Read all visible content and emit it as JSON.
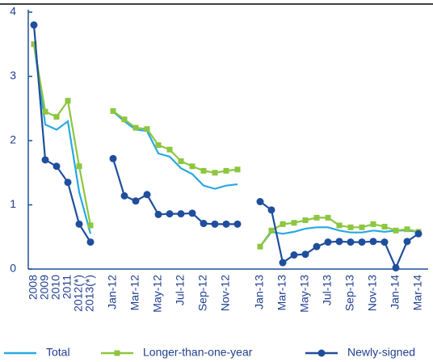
{
  "chart_data": {
    "type": "line",
    "categories": [
      "2008",
      "2009",
      "2010",
      "2011",
      "2012(*)",
      "2013(*)",
      null,
      "Jan-12",
      null,
      "Mar-12",
      null,
      "May-12",
      null,
      "Jul-12",
      null,
      "Sep-12",
      null,
      "Nov-12",
      null,
      null,
      "Jan-13",
      null,
      "Mar-13",
      null,
      "May-13",
      null,
      "Jul-13",
      null,
      "Sep-13",
      null,
      "Nov-13",
      null,
      "Jan-14",
      null,
      "Mar-14"
    ],
    "series": [
      {
        "name": "Total",
        "color": "#29a9e0",
        "marker": "none",
        "values": [
          3.5,
          2.25,
          2.17,
          2.3,
          1.2,
          0.55,
          null,
          2.45,
          2.3,
          2.17,
          2.15,
          1.8,
          1.75,
          1.57,
          1.48,
          1.3,
          1.25,
          1.3,
          1.32,
          null,
          0.35,
          0.58,
          0.55,
          0.58,
          0.63,
          0.65,
          0.65,
          0.6,
          0.57,
          0.57,
          0.6,
          0.58,
          0.6,
          0.6,
          0.58
        ]
      },
      {
        "name": "Longer-than-one-year",
        "color": "#8dc63f",
        "marker": "square",
        "values": [
          3.5,
          2.45,
          2.37,
          2.62,
          1.6,
          0.68,
          null,
          2.46,
          2.33,
          2.2,
          2.18,
          1.93,
          1.86,
          1.68,
          1.6,
          1.53,
          1.5,
          1.53,
          1.55,
          null,
          0.35,
          0.6,
          0.7,
          0.72,
          0.76,
          0.8,
          0.8,
          0.68,
          0.65,
          0.65,
          0.7,
          0.66,
          0.6,
          0.62,
          0.58
        ]
      },
      {
        "name": "Newly-signed",
        "color": "#1f4e9c",
        "marker": "circle",
        "values": [
          3.8,
          1.7,
          1.6,
          1.35,
          0.7,
          0.42,
          null,
          1.72,
          1.14,
          1.06,
          1.16,
          0.85,
          0.86,
          0.86,
          0.87,
          0.71,
          0.7,
          0.7,
          0.7,
          null,
          1.05,
          0.92,
          0.1,
          0.22,
          0.23,
          0.35,
          0.42,
          0.43,
          0.42,
          0.42,
          0.43,
          0.42,
          0.02,
          0.43,
          0.55
        ]
      }
    ],
    "ylim": [
      0,
      4
    ],
    "yticks": [
      0,
      1,
      2,
      3,
      4
    ],
    "grid": false,
    "legend": "bottom"
  }
}
